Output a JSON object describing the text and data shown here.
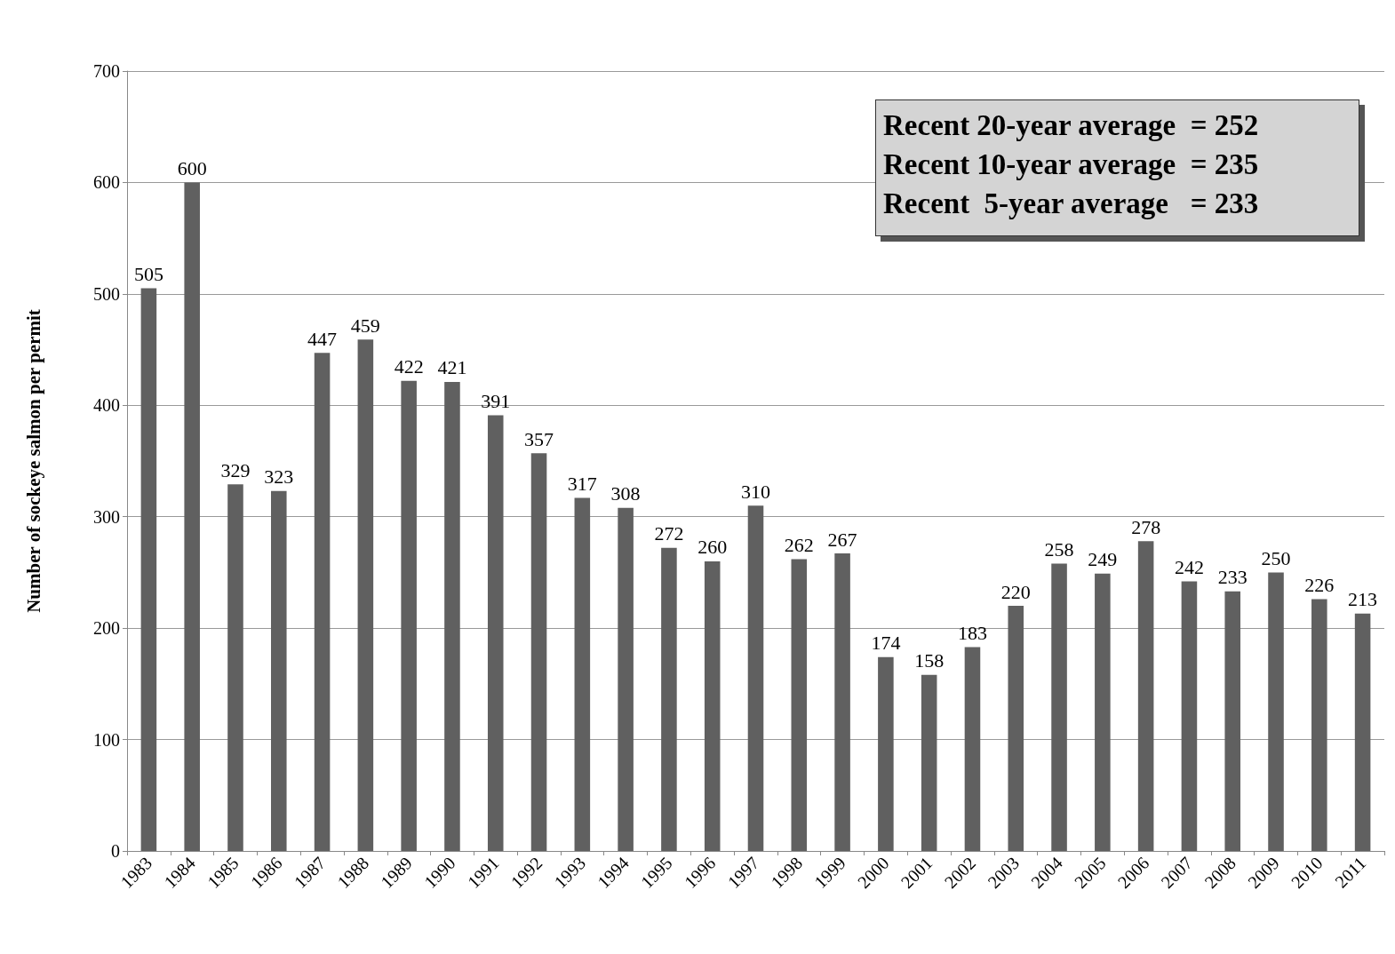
{
  "chart_data": {
    "type": "bar",
    "ylabel": "Number of sockeye salmon per permit",
    "categories": [
      "1983",
      "1984",
      "1985",
      "1986",
      "1987",
      "1988",
      "1989",
      "1990",
      "1991",
      "1992",
      "1993",
      "1994",
      "1995",
      "1996",
      "1997",
      "1998",
      "1999",
      "2000",
      "2001",
      "2002",
      "2003",
      "2004",
      "2005",
      "2006",
      "2007",
      "2008",
      "2009",
      "2010",
      "2011"
    ],
    "values": [
      505,
      600,
      329,
      323,
      447,
      459,
      422,
      421,
      391,
      357,
      317,
      308,
      272,
      260,
      310,
      262,
      267,
      174,
      158,
      183,
      220,
      258,
      249,
      278,
      242,
      233,
      250,
      226,
      213
    ],
    "color": "#606060",
    "ylim": [
      0,
      700
    ],
    "yticks": [
      0,
      100,
      200,
      300,
      400,
      500,
      600,
      700
    ],
    "grid": "y",
    "data_labels": true,
    "annotations": [
      "Recent 20-year average  = 252",
      "Recent 10-year average  = 235",
      "Recent  5-year average   = 233"
    ]
  }
}
